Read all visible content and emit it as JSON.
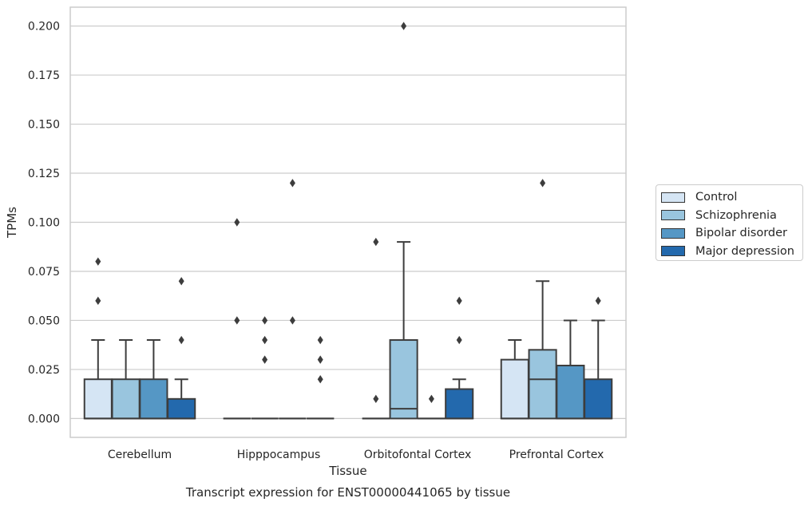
{
  "chart_data": {
    "type": "box",
    "title": "Transcript expression for ENST00000441065 by tissue",
    "xlabel": "Tissue",
    "ylabel": "TPMs",
    "ylim": [
      -0.0096,
      0.2096
    ],
    "yticks": [
      "0.000",
      "0.025",
      "0.050",
      "0.075",
      "0.100",
      "0.125",
      "0.150",
      "0.175",
      "0.200"
    ],
    "grid": "horizontal",
    "legend_position": "right",
    "categories": [
      "Cerebellum",
      "Hipppocampus",
      "Orbitofontal Cortex",
      "Prefrontal Cortex"
    ],
    "series": [
      {
        "name": "Control",
        "color": "#d5e5f4",
        "boxes": [
          {
            "category": "Cerebellum",
            "q1": 0.0,
            "median": 0.0,
            "q3": 0.02,
            "whisker_low": 0.0,
            "whisker_high": 0.04,
            "outliers": [
              0.06,
              0.08
            ]
          },
          {
            "category": "Hipppocampus",
            "q1": 0.0,
            "median": 0.0,
            "q3": 0.0,
            "whisker_low": 0.0,
            "whisker_high": 0.0,
            "outliers": [
              0.05,
              0.1
            ]
          },
          {
            "category": "Orbitofontal Cortex",
            "q1": 0.0,
            "median": 0.0,
            "q3": 0.0,
            "whisker_low": 0.0,
            "whisker_high": 0.0,
            "outliers": [
              0.01,
              0.09
            ]
          },
          {
            "category": "Prefrontal Cortex",
            "q1": 0.0,
            "median": 0.0,
            "q3": 0.03,
            "whisker_low": 0.0,
            "whisker_high": 0.04,
            "outliers": []
          }
        ]
      },
      {
        "name": "Schizophrenia",
        "color": "#99c5de",
        "boxes": [
          {
            "category": "Cerebellum",
            "q1": 0.0,
            "median": 0.0,
            "q3": 0.02,
            "whisker_low": 0.0,
            "whisker_high": 0.04,
            "outliers": []
          },
          {
            "category": "Hipppocampus",
            "q1": 0.0,
            "median": 0.0,
            "q3": 0.0,
            "whisker_low": 0.0,
            "whisker_high": 0.0,
            "outliers": [
              0.03,
              0.04,
              0.05
            ]
          },
          {
            "category": "Orbitofontal Cortex",
            "q1": 0.0,
            "median": 0.005,
            "q3": 0.04,
            "whisker_low": 0.0,
            "whisker_high": 0.09,
            "outliers": [
              0.2
            ]
          },
          {
            "category": "Prefrontal Cortex",
            "q1": 0.0,
            "median": 0.02,
            "q3": 0.035,
            "whisker_low": 0.0,
            "whisker_high": 0.07,
            "outliers": [
              0.12
            ]
          }
        ]
      },
      {
        "name": "Bipolar disorder",
        "color": "#5597c5",
        "boxes": [
          {
            "category": "Cerebellum",
            "q1": 0.0,
            "median": 0.0,
            "q3": 0.02,
            "whisker_low": 0.0,
            "whisker_high": 0.04,
            "outliers": []
          },
          {
            "category": "Hipppocampus",
            "q1": 0.0,
            "median": 0.0,
            "q3": 0.0,
            "whisker_low": 0.0,
            "whisker_high": 0.0,
            "outliers": [
              0.05,
              0.12
            ]
          },
          {
            "category": "Orbitofontal Cortex",
            "q1": 0.0,
            "median": 0.0,
            "q3": 0.0,
            "whisker_low": 0.0,
            "whisker_high": 0.0,
            "outliers": [
              0.01
            ]
          },
          {
            "category": "Prefrontal Cortex",
            "q1": 0.0,
            "median": 0.0,
            "q3": 0.027,
            "whisker_low": 0.0,
            "whisker_high": 0.05,
            "outliers": []
          }
        ]
      },
      {
        "name": "Major depression",
        "color": "#2369ad",
        "boxes": [
          {
            "category": "Cerebellum",
            "q1": 0.0,
            "median": 0.0,
            "q3": 0.01,
            "whisker_low": 0.0,
            "whisker_high": 0.02,
            "outliers": [
              0.04,
              0.07
            ]
          },
          {
            "category": "Hipppocampus",
            "q1": 0.0,
            "median": 0.0,
            "q3": 0.0,
            "whisker_low": 0.0,
            "whisker_high": 0.0,
            "outliers": [
              0.02,
              0.03,
              0.04
            ]
          },
          {
            "category": "Orbitofontal Cortex",
            "q1": 0.0,
            "median": 0.0,
            "q3": 0.015,
            "whisker_low": 0.0,
            "whisker_high": 0.02,
            "outliers": [
              0.04,
              0.06
            ]
          },
          {
            "category": "Prefrontal Cortex",
            "q1": 0.0,
            "median": 0.0,
            "q3": 0.02,
            "whisker_low": 0.0,
            "whisker_high": 0.05,
            "outliers": [
              0.06
            ]
          }
        ]
      }
    ]
  }
}
